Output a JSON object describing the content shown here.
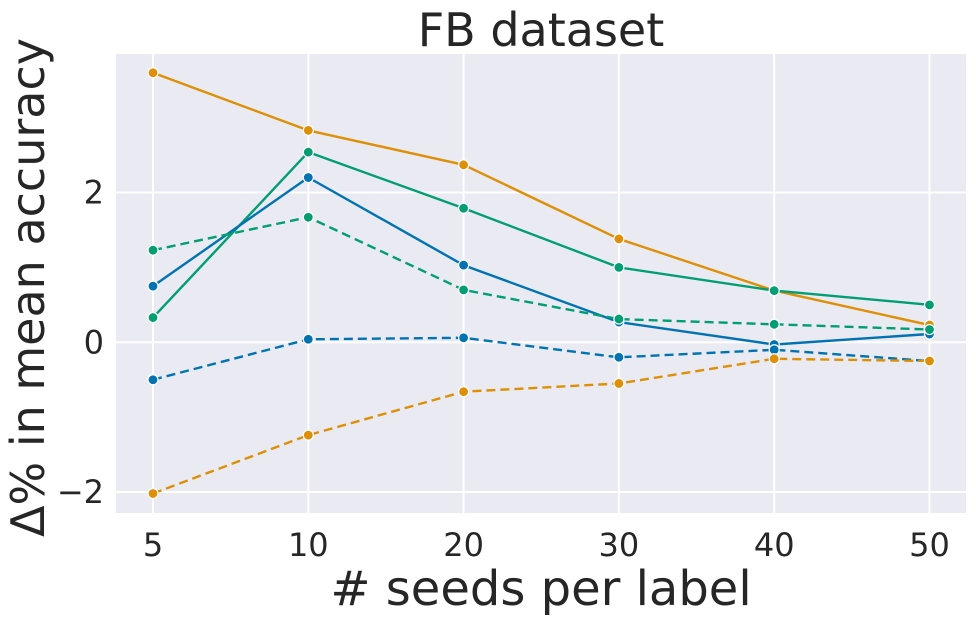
{
  "chart_data": {
    "type": "line",
    "title": "FB dataset",
    "xlabel": "# seeds per label",
    "ylabel": "Δ% in mean accuracy",
    "x": [
      5,
      10,
      20,
      30,
      40,
      50
    ],
    "x_tick_labels": [
      "5",
      "10",
      "20",
      "30",
      "40",
      "50"
    ],
    "y_ticks": [
      -2,
      0,
      2
    ],
    "y_tick_labels": [
      "−2",
      "0",
      "2"
    ],
    "ylim": [
      -2.28,
      3.85
    ],
    "grid": true,
    "legend": "none",
    "series": [
      {
        "color": "#de8f05",
        "line_style": "solid",
        "values": [
          3.6,
          2.83,
          2.37,
          1.38,
          0.69,
          0.23
        ]
      },
      {
        "color": "#029e73",
        "line_style": "solid",
        "values": [
          0.33,
          2.54,
          1.79,
          1.0,
          0.69,
          0.5
        ]
      },
      {
        "color": "#0173b2",
        "line_style": "solid",
        "values": [
          0.75,
          2.2,
          1.03,
          0.27,
          -0.03,
          0.11
        ]
      },
      {
        "color": "#029e73",
        "line_style": "dashed",
        "values": [
          1.23,
          1.67,
          0.7,
          0.31,
          0.24,
          0.17
        ]
      },
      {
        "color": "#0173b2",
        "line_style": "dashed",
        "values": [
          -0.5,
          0.04,
          0.06,
          -0.2,
          -0.1,
          -0.25
        ]
      },
      {
        "color": "#de8f05",
        "line_style": "dashed",
        "values": [
          -2.02,
          -1.24,
          -0.66,
          -0.55,
          -0.22,
          -0.25
        ]
      }
    ]
  },
  "style": {
    "plot_background": "#eaeaf2",
    "grid_color": "#ffffff",
    "text_color": "#262626"
  }
}
